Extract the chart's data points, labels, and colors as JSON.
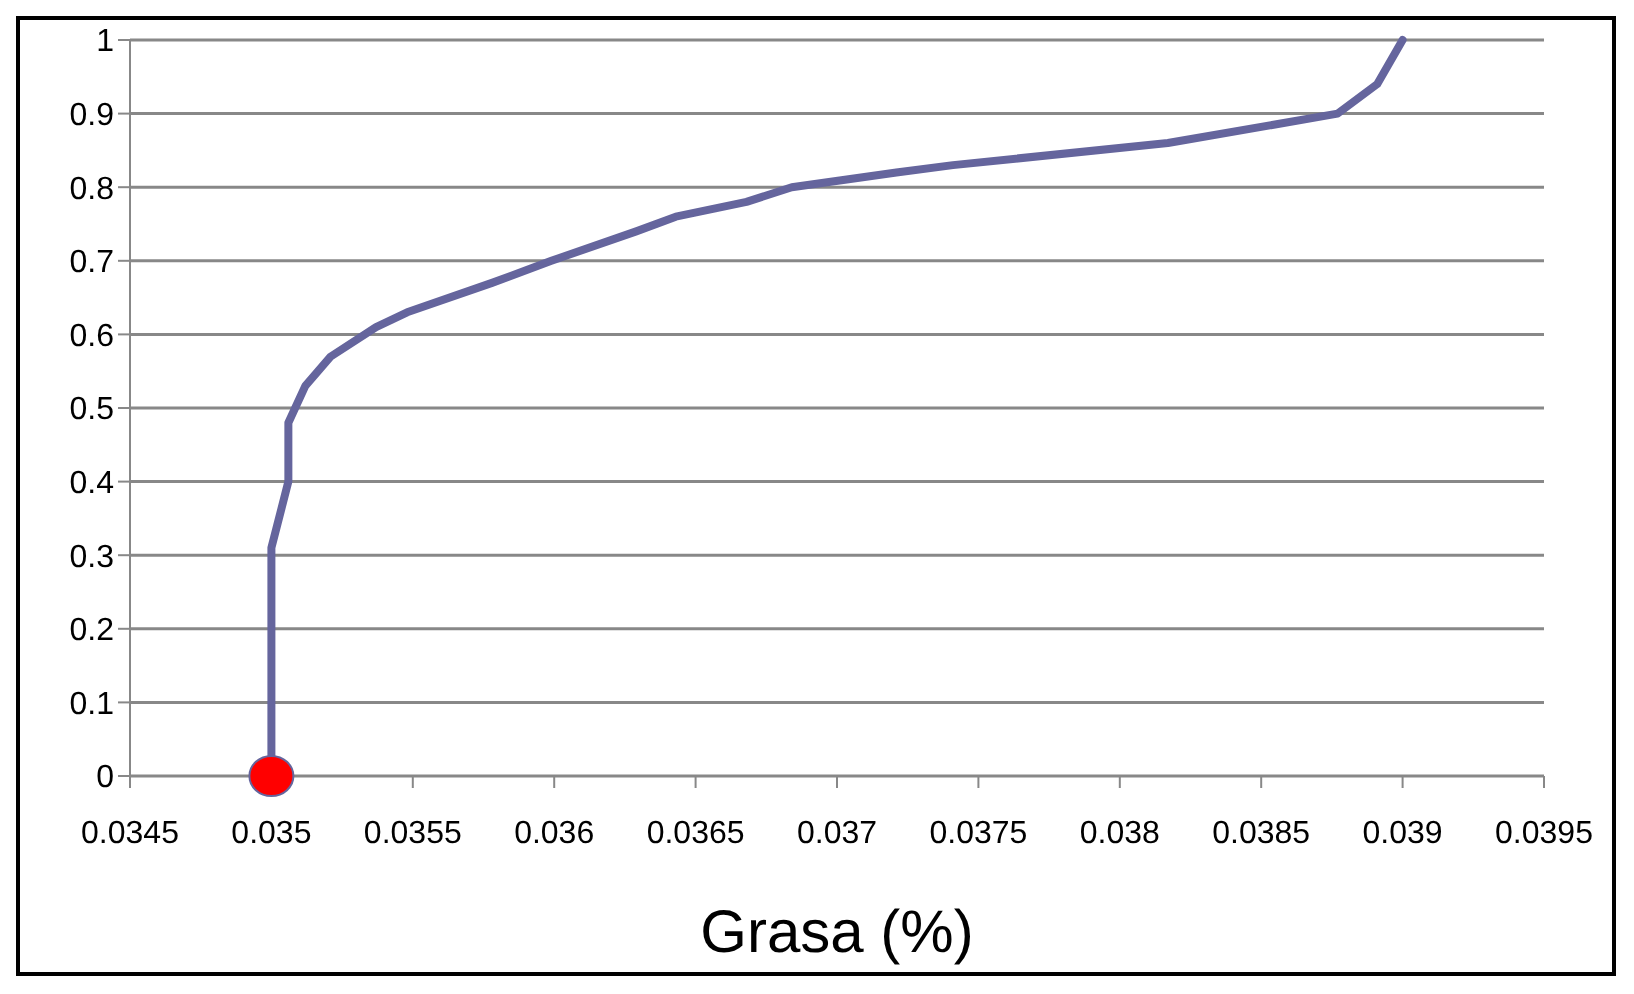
{
  "chart_data": {
    "type": "line",
    "xlabel": "Grasa (%)",
    "series": [
      {
        "color": "#65659d",
        "marker": "none",
        "x": [
          0.035,
          0.035,
          0.03506,
          0.03506,
          0.03512,
          0.03521,
          0.03537,
          0.03548,
          0.03578,
          0.03599,
          0.03629,
          0.03643,
          0.03668,
          0.03684,
          0.03721,
          0.03741,
          0.03817,
          0.03877,
          0.03891,
          0.039
        ],
        "values": [
          0,
          0.31,
          0.4,
          0.48,
          0.53,
          0.57,
          0.61,
          0.63,
          0.67,
          0.7,
          0.74,
          0.76,
          0.78,
          0.8,
          0.82,
          0.83,
          0.86,
          0.9,
          0.94,
          1
        ]
      },
      {
        "type": "scatter",
        "marker": "circle",
        "color": "#ff0000",
        "x": [
          0.035
        ],
        "values": [
          0
        ]
      }
    ],
    "xlim": [
      0.0345,
      0.0395
    ],
    "xticks": [
      0.0345,
      0.035,
      0.0355,
      0.036,
      0.0365,
      0.037,
      0.0375,
      0.038,
      0.0385,
      0.039,
      0.0395
    ],
    "ylim": [
      0,
      1
    ],
    "yticks": [
      0,
      0.1,
      0.2,
      0.3,
      0.4,
      0.5,
      0.6,
      0.7,
      0.8,
      0.9,
      1
    ],
    "grid": "y",
    "line_style": "solid",
    "legend": false
  }
}
